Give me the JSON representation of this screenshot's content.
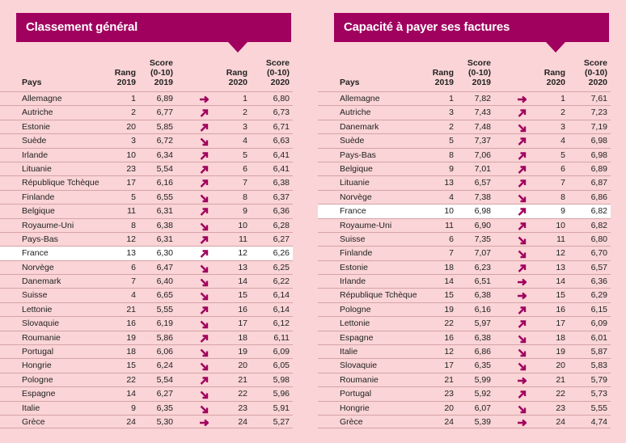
{
  "colors": {
    "accent": "#a0005e",
    "background": "#fad4d6",
    "highlight": "#ffffff"
  },
  "headers": {
    "pays": "Pays",
    "rang2019": [
      "Rang",
      "2019"
    ],
    "score2019": [
      "Score",
      "(0-10)",
      "2019"
    ],
    "rang2020": [
      "Rang",
      "2020"
    ],
    "score2020": [
      "Score",
      "(0-10)",
      "2020"
    ]
  },
  "panels": [
    {
      "title": "Classement général",
      "rows": [
        [
          "Allemagne",
          "1",
          "6,89",
          "right",
          "1",
          "6,80"
        ],
        [
          "Autriche",
          "2",
          "6,77",
          "up",
          "2",
          "6,73"
        ],
        [
          "Estonie",
          "20",
          "5,85",
          "up",
          "3",
          "6,71"
        ],
        [
          "Suède",
          "3",
          "6,72",
          "down",
          "4",
          "6,63"
        ],
        [
          "Irlande",
          "10",
          "6,34",
          "up",
          "5",
          "6,41"
        ],
        [
          "Lituanie",
          "23",
          "5,54",
          "up",
          "6",
          "6,41"
        ],
        [
          "République Tchèque",
          "17",
          "6,16",
          "up",
          "7",
          "6,38"
        ],
        [
          "Finlande",
          "5",
          "6,55",
          "down",
          "8",
          "6,37"
        ],
        [
          "Belgique",
          "11",
          "6,31",
          "up",
          "9",
          "6,36"
        ],
        [
          "Royaume-Uni",
          "8",
          "6,38",
          "down",
          "10",
          "6,28"
        ],
        [
          "Pays-Bas",
          "12",
          "6,31",
          "up",
          "11",
          "6,27"
        ],
        [
          "France",
          "13",
          "6,30",
          "up",
          "12",
          "6,26"
        ],
        [
          "Norvège",
          "6",
          "6,47",
          "down",
          "13",
          "6,25"
        ],
        [
          "Danemark",
          "7",
          "6,40",
          "down",
          "14",
          "6,22"
        ],
        [
          "Suisse",
          "4",
          "6,65",
          "down",
          "15",
          "6,14"
        ],
        [
          "Lettonie",
          "21",
          "5,55",
          "up",
          "16",
          "6,14"
        ],
        [
          "Slovaquie",
          "16",
          "6,19",
          "down",
          "17",
          "6,12"
        ],
        [
          "Roumanie",
          "19",
          "5,86",
          "up",
          "18",
          "6,11"
        ],
        [
          "Portugal",
          "18",
          "6,06",
          "down",
          "19",
          "6,09"
        ],
        [
          "Hongrie",
          "15",
          "6,24",
          "down",
          "20",
          "6,05"
        ],
        [
          "Pologne",
          "22",
          "5,54",
          "up",
          "21",
          "5,98"
        ],
        [
          "Espagne",
          "14",
          "6,27",
          "down",
          "22",
          "5,96"
        ],
        [
          "Italie",
          "9",
          "6,35",
          "down",
          "23",
          "5,91"
        ],
        [
          "Grèce",
          "24",
          "5,30",
          "right",
          "24",
          "5,27"
        ]
      ]
    },
    {
      "title": "Capacité à payer ses factures",
      "rows": [
        [
          "Allemagne",
          "1",
          "7,82",
          "right",
          "1",
          "7,61"
        ],
        [
          "Autriche",
          "3",
          "7,43",
          "up",
          "2",
          "7,23"
        ],
        [
          "Danemark",
          "2",
          "7,48",
          "down",
          "3",
          "7,19"
        ],
        [
          "Suède",
          "5",
          "7,37",
          "up",
          "4",
          "6,98"
        ],
        [
          "Pays-Bas",
          "8",
          "7,06",
          "up",
          "5",
          "6,98"
        ],
        [
          "Belgique",
          "9",
          "7,01",
          "up",
          "6",
          "6,89"
        ],
        [
          "Lituanie",
          "13",
          "6,57",
          "up",
          "7",
          "6,87"
        ],
        [
          "Norvège",
          "4",
          "7,38",
          "down",
          "8",
          "6,86"
        ],
        [
          "France",
          "10",
          "6,98",
          "up",
          "9",
          "6,82"
        ],
        [
          "Royaume-Uni",
          "11",
          "6,90",
          "up",
          "10",
          "6,82"
        ],
        [
          "Suisse",
          "6",
          "7,35",
          "down",
          "11",
          "6,80"
        ],
        [
          "Finlande",
          "7",
          "7,07",
          "down",
          "12",
          "6,70"
        ],
        [
          "Estonie",
          "18",
          "6,23",
          "up",
          "13",
          "6,57"
        ],
        [
          "Irlande",
          "14",
          "6,51",
          "right",
          "14",
          "6,36"
        ],
        [
          "République Tchèque",
          "15",
          "6,38",
          "right",
          "15",
          "6,29"
        ],
        [
          "Pologne",
          "19",
          "6,16",
          "up",
          "16",
          "6,15"
        ],
        [
          "Lettonie",
          "22",
          "5,97",
          "up",
          "17",
          "6,09"
        ],
        [
          "Espagne",
          "16",
          "6,38",
          "down",
          "18",
          "6,01"
        ],
        [
          "Italie",
          "12",
          "6,86",
          "down",
          "19",
          "5,87"
        ],
        [
          "Slovaquie",
          "17",
          "6,35",
          "down",
          "20",
          "5,83"
        ],
        [
          "Roumanie",
          "21",
          "5,99",
          "right",
          "21",
          "5,79"
        ],
        [
          "Portugal",
          "23",
          "5,92",
          "up",
          "22",
          "5,73"
        ],
        [
          "Hongrie",
          "20",
          "6,07",
          "down",
          "23",
          "5,55"
        ],
        [
          "Grèce",
          "24",
          "5,39",
          "right",
          "24",
          "4,74"
        ]
      ]
    }
  ]
}
